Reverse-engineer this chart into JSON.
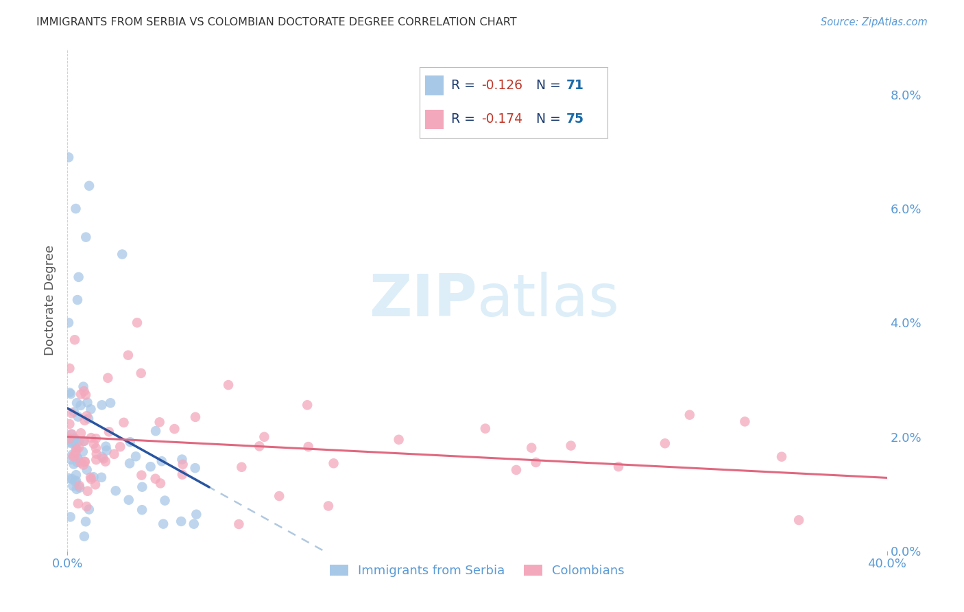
{
  "title": "IMMIGRANTS FROM SERBIA VS COLOMBIAN DOCTORATE DEGREE CORRELATION CHART",
  "source": "Source: ZipAtlas.com",
  "ylabel": "Doctorate Degree",
  "legend_serbia_r": "R = -0.126",
  "legend_serbia_n": "N = 71",
  "legend_colombia_r": "R = -0.174",
  "legend_colombia_n": "N = 75",
  "legend_serbia_label": "Immigrants from Serbia",
  "legend_colombia_label": "Colombians",
  "serbia_color": "#a8c8e8",
  "colombia_color": "#f4a8bc",
  "serbia_line_color": "#2855a0",
  "colombia_line_color": "#e06880",
  "trendline_ext_color": "#b0c8e0",
  "xlim": [
    0.0,
    0.4
  ],
  "ylim": [
    0.0,
    0.088
  ],
  "background_color": "#ffffff",
  "grid_color": "#cccccc",
  "title_color": "#333333",
  "axis_label_color": "#5b9bd5",
  "legend_text_color": "#1a3a6e",
  "watermark_color": "#ddeef8"
}
